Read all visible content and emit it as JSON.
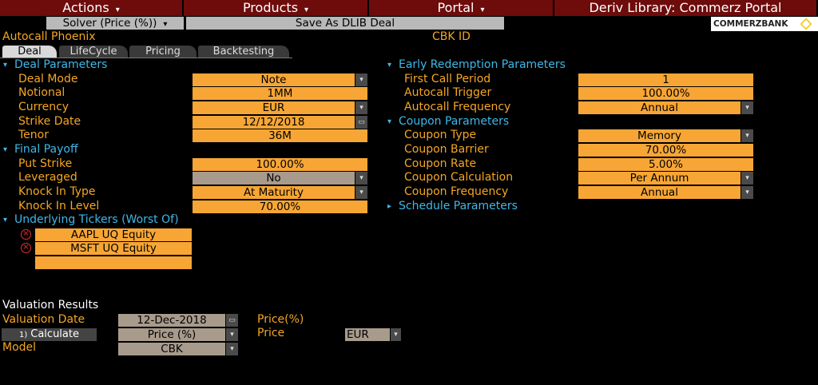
{
  "menu": [
    "Actions",
    "Products",
    "Portal",
    "Deriv Library: Commerz Portal"
  ],
  "toolbar": {
    "solver": "Solver (Price (%))",
    "save": "Save As DLIB Deal",
    "logo": "COMMERZBANK"
  },
  "deal": {
    "name": "Autocall Phoenix",
    "id_label": "CBK ID"
  },
  "tabs": [
    "Deal",
    "LifeCycle",
    "Pricing",
    "Backtesting"
  ],
  "left": [
    {
      "title": "Deal Parameters",
      "fields": [
        {
          "label": "Deal Mode",
          "value": "Note",
          "control": "dropdown"
        },
        {
          "label": "Notional",
          "value": "1MM",
          "control": "text"
        },
        {
          "label": "Currency",
          "value": "EUR",
          "control": "dropdown"
        },
        {
          "label": "Strike Date",
          "value": "12/12/2018",
          "control": "calendar"
        },
        {
          "label": "Tenor",
          "value": "36M",
          "control": "text"
        }
      ]
    },
    {
      "title": "Final Payoff",
      "fields": [
        {
          "label": "Put Strike",
          "value": "100.00%",
          "control": "text"
        },
        {
          "label": "Leveraged",
          "value": "No",
          "control": "disabled-dropdown"
        },
        {
          "label": "Knock In Type",
          "value": "At Maturity",
          "control": "dropdown"
        },
        {
          "label": "Knock In Level",
          "value": "70.00%",
          "control": "text"
        }
      ]
    },
    {
      "title": "Underlying Tickers (Worst Of)",
      "tickers": [
        "AAPL UQ Equity",
        "MSFT UQ Equity"
      ]
    }
  ],
  "right": [
    {
      "title": "Early Redemption Parameters",
      "fields": [
        {
          "label": "First Call Period",
          "value": "1",
          "control": "text"
        },
        {
          "label": "Autocall Trigger",
          "value": "100.00%",
          "control": "text"
        },
        {
          "label": "Autocall Frequency",
          "value": "Annual",
          "control": "dropdown"
        }
      ]
    },
    {
      "title": "Coupon Parameters",
      "fields": [
        {
          "label": "Coupon Type",
          "value": "Memory",
          "control": "dropdown"
        },
        {
          "label": "Coupon Barrier",
          "value": "70.00%",
          "control": "text"
        },
        {
          "label": "Coupon Rate",
          "value": "5.00%",
          "control": "text"
        },
        {
          "label": "Coupon Calculation",
          "value": "Per Annum",
          "control": "dropdown"
        },
        {
          "label": "Coupon Frequency",
          "value": "Annual",
          "control": "dropdown"
        }
      ]
    },
    {
      "title": "Schedule Parameters",
      "collapsed": true,
      "fields": []
    }
  ],
  "valuation": {
    "title": "Valuation Results",
    "date_label": "Valuation Date",
    "date": "12-Dec-2018",
    "price_pct_label": "Price(%)",
    "calculate_num": "1)",
    "calculate": "Calculate",
    "price_type": "Price (%)",
    "price_label": "Price",
    "currency": "EUR",
    "model_label": "Model",
    "model": "CBK"
  }
}
